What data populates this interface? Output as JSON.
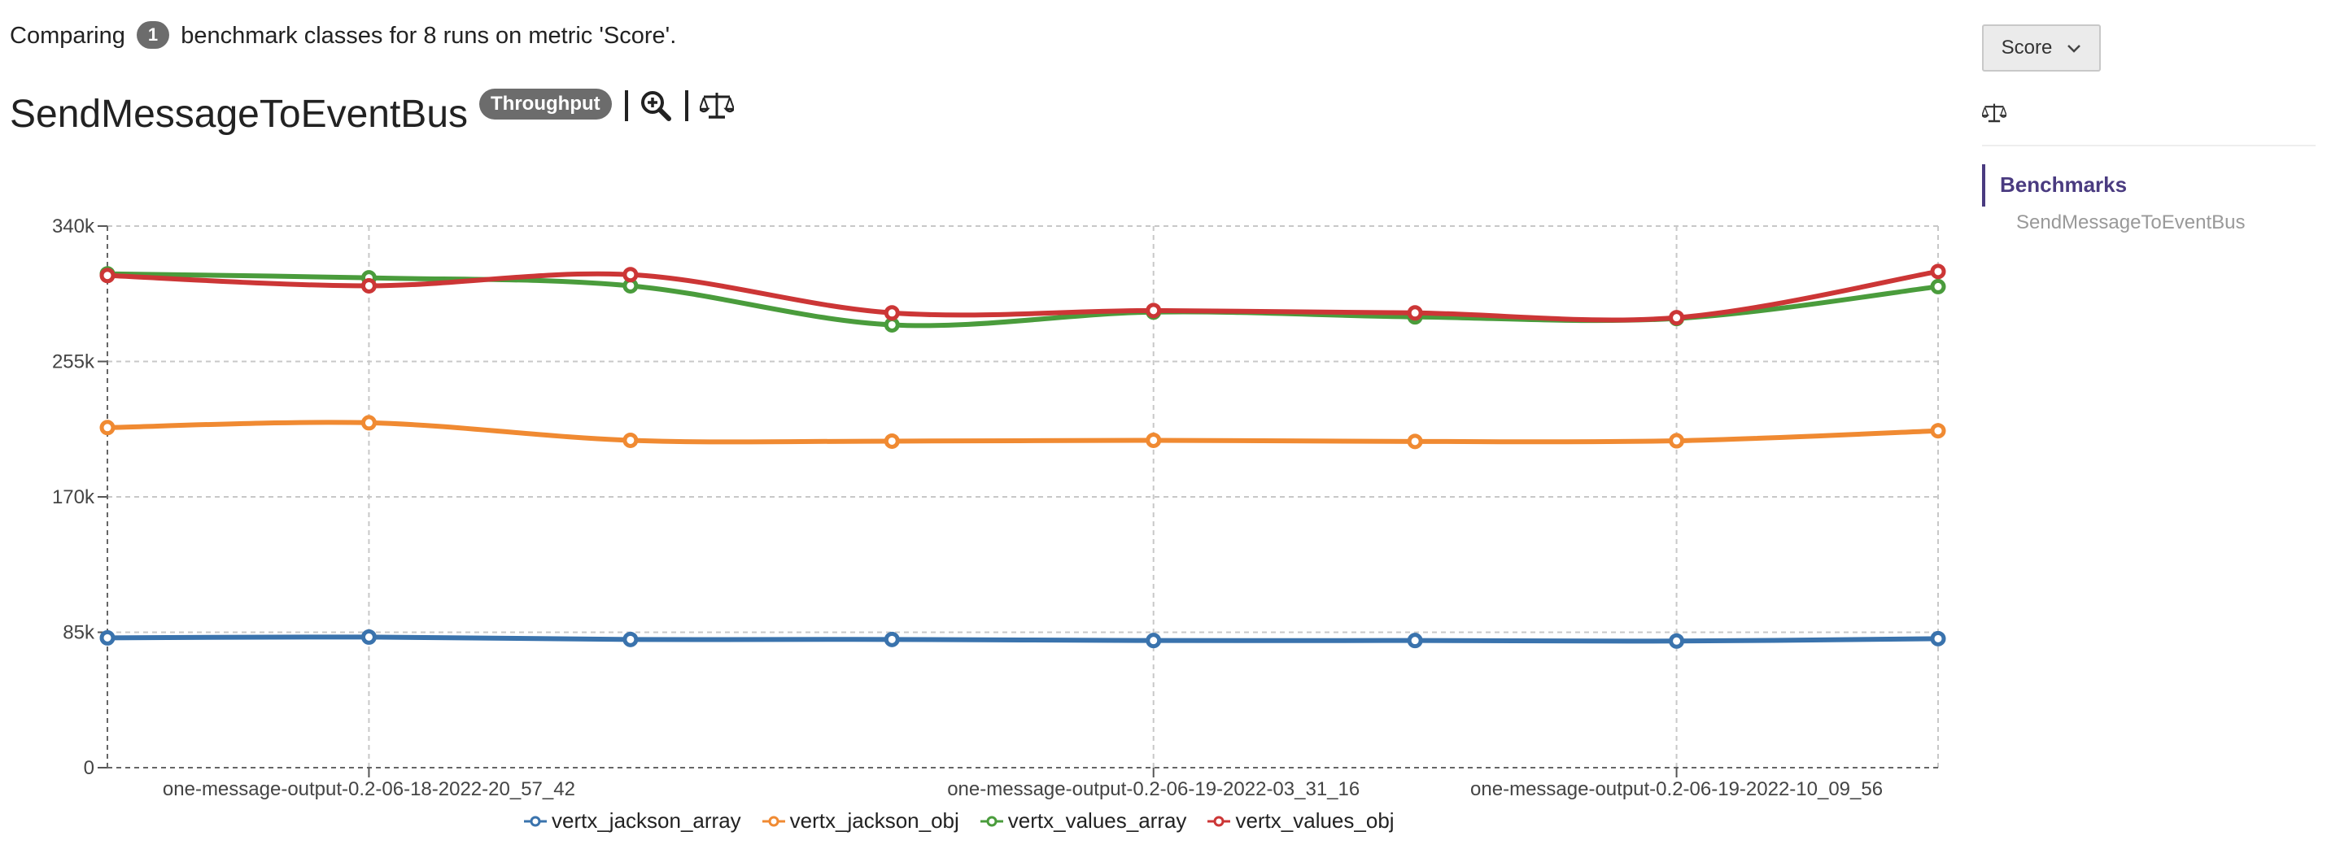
{
  "header": {
    "summary_prefix": "Comparing",
    "class_count": "1",
    "summary_suffix": "benchmark classes for 8 runs on metric 'Score'.",
    "benchmark_title": "SendMessageToEventBus",
    "mode_badge": "Throughput",
    "icons": [
      "zoom-in-icon",
      "balance-scale-icon"
    ]
  },
  "sidebar": {
    "metric_select": {
      "selected": "Score"
    },
    "compare_icon": "balance-scale-icon",
    "nav_heading": "Benchmarks",
    "nav_items": [
      "SendMessageToEventBus"
    ]
  },
  "colors": {
    "accent": "#4a3b80",
    "badge": "#6c6c6c"
  },
  "chart_data": {
    "type": "line",
    "title": "",
    "xlabel": "",
    "ylabel": "",
    "ylim": [
      0,
      340000
    ],
    "yticks": [
      0,
      85000,
      170000,
      255000,
      340000
    ],
    "ytick_labels": [
      "0",
      "85k",
      "170k",
      "255k",
      "340k"
    ],
    "x": [
      1,
      2,
      3,
      4,
      5,
      6,
      7,
      8
    ],
    "xtick_positions": [
      2,
      5,
      7
    ],
    "xtick_labels": [
      "one-message-output-0.2-06-18-2022-20_57_42",
      "one-message-output-0.2-06-19-2022-03_31_16",
      "one-message-output-0.2-06-19-2022-10_09_56"
    ],
    "grid": true,
    "legend_position": "bottom",
    "series": [
      {
        "name": "vertx_jackson_array",
        "color": "#3a73ad",
        "values": [
          81500,
          82000,
          80500,
          80500,
          79800,
          79800,
          79500,
          81000
        ]
      },
      {
        "name": "vertx_jackson_obj",
        "color": "#f08a32",
        "values": [
          213500,
          216500,
          205500,
          205000,
          205500,
          204800,
          205200,
          211500
        ]
      },
      {
        "name": "vertx_values_array",
        "color": "#4a9c3c",
        "values": [
          310000,
          307500,
          302500,
          278000,
          286000,
          283000,
          282000,
          302000
        ]
      },
      {
        "name": "vertx_values_obj",
        "color": "#cc3636",
        "values": [
          309000,
          302500,
          309500,
          285500,
          287000,
          285500,
          282500,
          311500
        ]
      }
    ]
  }
}
